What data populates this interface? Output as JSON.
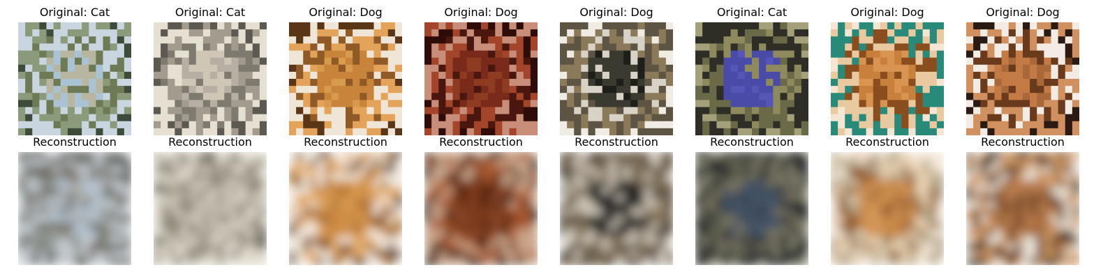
{
  "panels": [
    {
      "original_title": "Original: Cat",
      "reconstruction_title": "Reconstruction",
      "original_palette": [
        "#a9c2d4",
        "#8a9a7a",
        "#6d7a55",
        "#c9d6df",
        "#3e4a3a",
        "#b8b6a0"
      ],
      "recon_palette": [
        "#b4c2cf",
        "#8f9491",
        "#6f6b60",
        "#c6ccd2",
        "#5a5a55",
        "#a7a9a4"
      ]
    },
    {
      "original_title": "Original: Cat",
      "reconstruction_title": "Reconstruction",
      "original_palette": [
        "#cfc6b6",
        "#a39c8e",
        "#7f7a70",
        "#e6e0d3",
        "#5c5852",
        "#b7afa3"
      ],
      "recon_palette": [
        "#d3ccbd",
        "#a9a294",
        "#888275",
        "#e2dccf",
        "#6e6a61",
        "#bdb6a8"
      ]
    },
    {
      "original_title": "Original: Dog",
      "reconstruction_title": "Reconstruction",
      "original_palette": [
        "#c8843a",
        "#e3a35a",
        "#8f5a26",
        "#f0e6d8",
        "#5a3616",
        "#d89a4c"
      ],
      "recon_palette": [
        "#cf8c42",
        "#e2aa6a",
        "#9a6530",
        "#f2e8dc",
        "#6a4522",
        "#d9a05a"
      ]
    },
    {
      "original_title": "Original: Dog",
      "reconstruction_title": "Reconstruction",
      "original_palette": [
        "#7a2a1a",
        "#a2452a",
        "#4a160e",
        "#c98e7a",
        "#2f0c08",
        "#8e3b22"
      ],
      "recon_palette": [
        "#7d3a1e",
        "#a8582e",
        "#4e2410",
        "#c9a58a",
        "#35170a",
        "#915030"
      ]
    },
    {
      "original_title": "Original: Dog",
      "reconstruction_title": "Reconstruction",
      "original_palette": [
        "#3a3a30",
        "#8a7a5a",
        "#d9d2c6",
        "#5e5444",
        "#f0ece4",
        "#1e1e1a"
      ],
      "recon_palette": [
        "#3b3831",
        "#85745c",
        "#cfc6b8",
        "#5b5142",
        "#e6e0d6",
        "#242320"
      ]
    },
    {
      "original_title": "Original: Cat",
      "reconstruction_title": "Reconstruction",
      "original_palette": [
        "#4a4aa8",
        "#6a6a48",
        "#8e8a5e",
        "#2e2e26",
        "#a3a07a",
        "#5656b8"
      ],
      "recon_palette": [
        "#3a4656",
        "#5e5e50",
        "#7a7664",
        "#22262c",
        "#8c8a76",
        "#445468"
      ]
    },
    {
      "original_title": "Original: Dog",
      "reconstruction_title": "Reconstruction",
      "original_palette": [
        "#c9803c",
        "#e8c9a0",
        "#8a4e1e",
        "#2a8a7a",
        "#f4e6d2",
        "#d89450"
      ],
      "recon_palette": [
        "#c98a4a",
        "#e9d2b2",
        "#935c2c",
        "#b7a98e",
        "#f3e8d8",
        "#d99c5e"
      ]
    },
    {
      "original_title": "Original: Dog",
      "reconstruction_title": "Reconstruction",
      "original_palette": [
        "#a8683a",
        "#f2ece4",
        "#6a3a1c",
        "#d09060",
        "#2a1a12",
        "#c47a44"
      ],
      "recon_palette": [
        "#a66d40",
        "#ece4d8",
        "#6d4226",
        "#cd9866",
        "#3a281c",
        "#c08050"
      ]
    }
  ]
}
